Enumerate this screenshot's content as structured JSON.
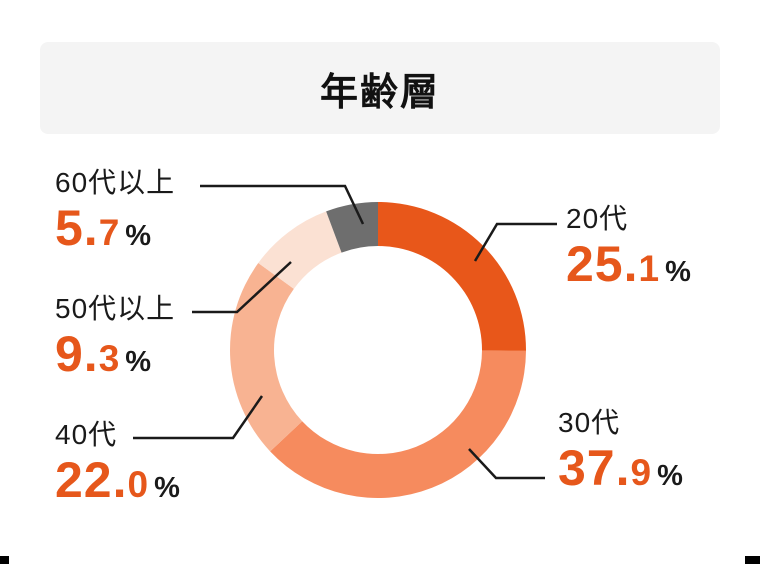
{
  "header": {
    "title": "年齢層"
  },
  "colors": {
    "accent_orange": "#e6571b",
    "text_black": "#1a1a1a",
    "header_bg": "#f4f4f4",
    "page_bg": "#ffffff"
  },
  "chart_data": {
    "type": "pie",
    "variant": "donut",
    "title": "年齢層",
    "unit": "%",
    "direction": "clockwise",
    "start_angle_deg": 0,
    "slices": [
      {
        "label": "20代",
        "value": 25.1,
        "color": "#e8571a"
      },
      {
        "label": "30代",
        "value": 37.9,
        "color": "#f68b5e"
      },
      {
        "label": "40代",
        "value": 22.0,
        "color": "#f8b392"
      },
      {
        "label": "50代以上",
        "value": 9.3,
        "color": "#fbe1d3"
      },
      {
        "label": "60代以上",
        "value": 5.7,
        "color": "#6e6e6e"
      }
    ],
    "legend_position": "callouts"
  },
  "callouts": {
    "age20": {
      "label": "20代",
      "int": "25.",
      "dec": "1",
      "sign": "%"
    },
    "age30": {
      "label": "30代",
      "int": "37.",
      "dec": "9",
      "sign": "%"
    },
    "age40": {
      "label": "40代",
      "int": "22.",
      "dec": "0",
      "sign": "%"
    },
    "age50": {
      "label": "50代以上",
      "int": "9.",
      "dec": "3",
      "sign": "%"
    },
    "age60": {
      "label": "60代以上",
      "int": "5.",
      "dec": "7",
      "sign": "%"
    }
  }
}
